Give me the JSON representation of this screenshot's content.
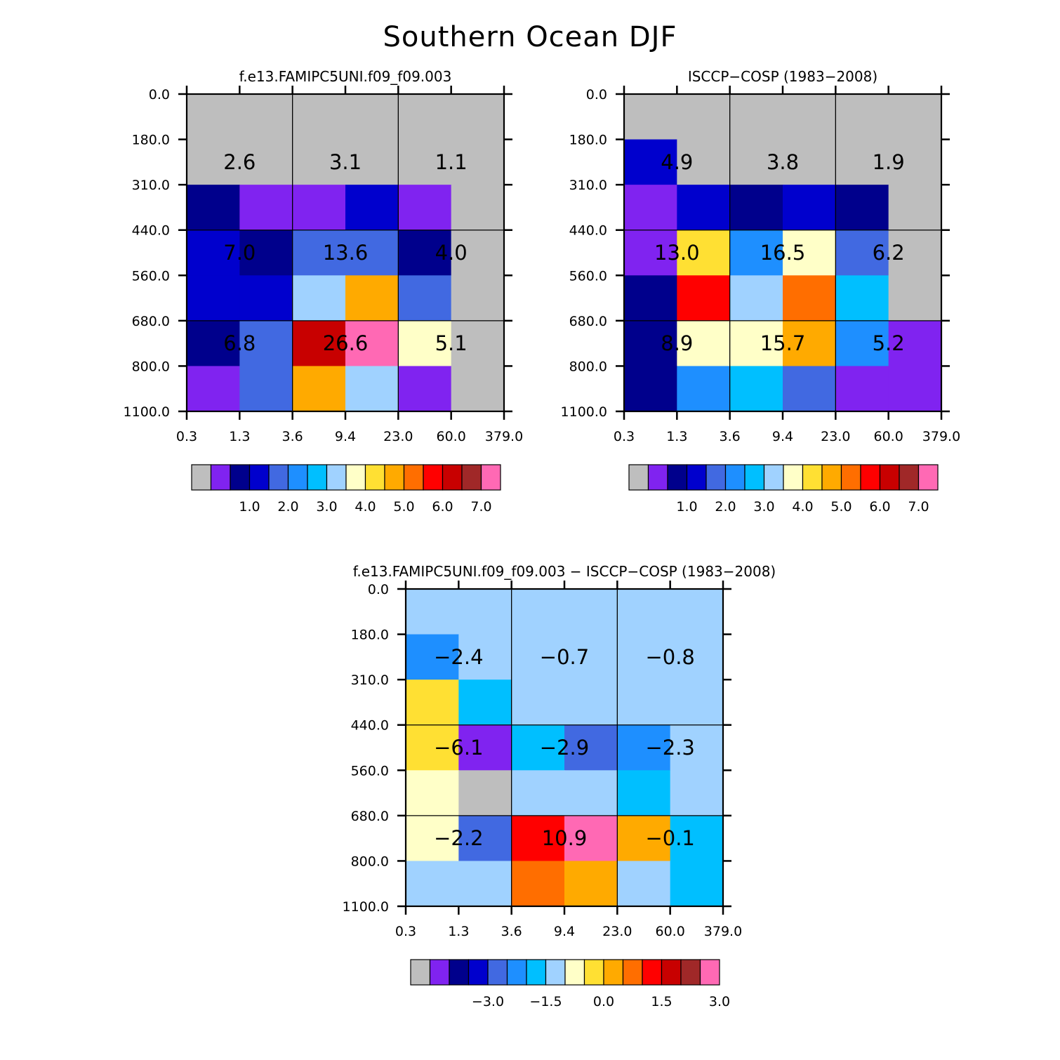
{
  "figure_title": "Southern Ocean DJF",
  "chart_data": [
    {
      "type": "heatmap",
      "title": "f.e13.FAMIPC5UNI.f09_f09.003",
      "x_tick_labels": [
        "0.3",
        "1.3",
        "3.6",
        "9.4",
        "23.0",
        "60.0",
        "379.0"
      ],
      "y_tick_labels": [
        "0.0",
        "180.0",
        "310.0",
        "440.0",
        "560.0",
        "680.0",
        "800.0",
        "1100.0"
      ],
      "cell_color_levels": [
        [
          0,
          0,
          0,
          0,
          0,
          0
        ],
        [
          0,
          0,
          0,
          0,
          0,
          0
        ],
        [
          2,
          1,
          1,
          3,
          1,
          0
        ],
        [
          3,
          2,
          4,
          4,
          2,
          0
        ],
        [
          3,
          3,
          7,
          10,
          4,
          0
        ],
        [
          2,
          4,
          13,
          15,
          8,
          0
        ],
        [
          1,
          4,
          10,
          7,
          1,
          0
        ]
      ],
      "summary_values": [
        [
          "2.6",
          "3.1",
          "1.1"
        ],
        [
          "7.0",
          "13.6",
          "4.0"
        ],
        [
          "6.8",
          "26.6",
          "5.1"
        ]
      ],
      "colorbar_labels": [
        "1.0",
        "2.0",
        "3.0",
        "4.0",
        "5.0",
        "6.0",
        "7.0"
      ]
    },
    {
      "type": "heatmap",
      "title": "ISCCP-COSP (1983-2008)",
      "x_tick_labels": [
        "0.3",
        "1.3",
        "3.6",
        "9.4",
        "23.0",
        "60.0",
        "379.0"
      ],
      "y_tick_labels": [
        "0.0",
        "180.0",
        "310.0",
        "440.0",
        "560.0",
        "680.0",
        "800.0",
        "1100.0"
      ],
      "cell_color_levels": [
        [
          0,
          0,
          0,
          0,
          0,
          0
        ],
        [
          3,
          0,
          0,
          0,
          0,
          0
        ],
        [
          1,
          3,
          2,
          3,
          2,
          0
        ],
        [
          1,
          9,
          5,
          8,
          4,
          0
        ],
        [
          2,
          12,
          7,
          11,
          6,
          0
        ],
        [
          2,
          8,
          8,
          10,
          5,
          1
        ],
        [
          2,
          5,
          6,
          4,
          1,
          1
        ]
      ],
      "summary_values": [
        [
          "4.9",
          "3.8",
          "1.9"
        ],
        [
          "13.0",
          "16.5",
          "6.2"
        ],
        [
          "8.9",
          "15.7",
          "5.2"
        ]
      ],
      "colorbar_labels": [
        "1.0",
        "2.0",
        "3.0",
        "4.0",
        "5.0",
        "6.0",
        "7.0"
      ]
    },
    {
      "type": "heatmap",
      "title": "f.e13.FAMIPC5UNI.f09_f09.003 - ISCCP-COSP (1983-2008)",
      "x_tick_labels": [
        "0.3",
        "1.3",
        "3.6",
        "9.4",
        "23.0",
        "60.0",
        "379.0"
      ],
      "y_tick_labels": [
        "0.0",
        "180.0",
        "310.0",
        "440.0",
        "560.0",
        "680.0",
        "800.0",
        "1100.0"
      ],
      "cell_color_levels": [
        [
          7,
          7,
          7,
          7,
          7,
          7
        ],
        [
          5,
          7,
          7,
          7,
          7,
          7
        ],
        [
          9,
          6,
          7,
          7,
          7,
          7
        ],
        [
          9,
          1,
          6,
          4,
          5,
          7
        ],
        [
          8,
          0,
          7,
          7,
          6,
          7
        ],
        [
          8,
          4,
          12,
          15,
          10,
          6
        ],
        [
          7,
          7,
          11,
          10,
          7,
          6
        ]
      ],
      "summary_values": [
        [
          "-2.4",
          "-0.7",
          "-0.8"
        ],
        [
          "-6.1",
          "-2.9",
          "-2.3"
        ],
        [
          "-2.2",
          "10.9",
          "-0.1"
        ]
      ],
      "colorbar_labels": [
        "-3.0",
        "-1.5",
        "0.0",
        "1.5",
        "3.0"
      ]
    }
  ],
  "palette": [
    "#bebebe",
    "#8023f0",
    "#00008c",
    "#0000cd",
    "#4169e1",
    "#1e8fff",
    "#00bfff",
    "#a0d2ff",
    "#ffffc8",
    "#ffe033",
    "#ffaa00",
    "#ff6e00",
    "#ff0000",
    "#c80000",
    "#a02828",
    "#ff69b4"
  ]
}
